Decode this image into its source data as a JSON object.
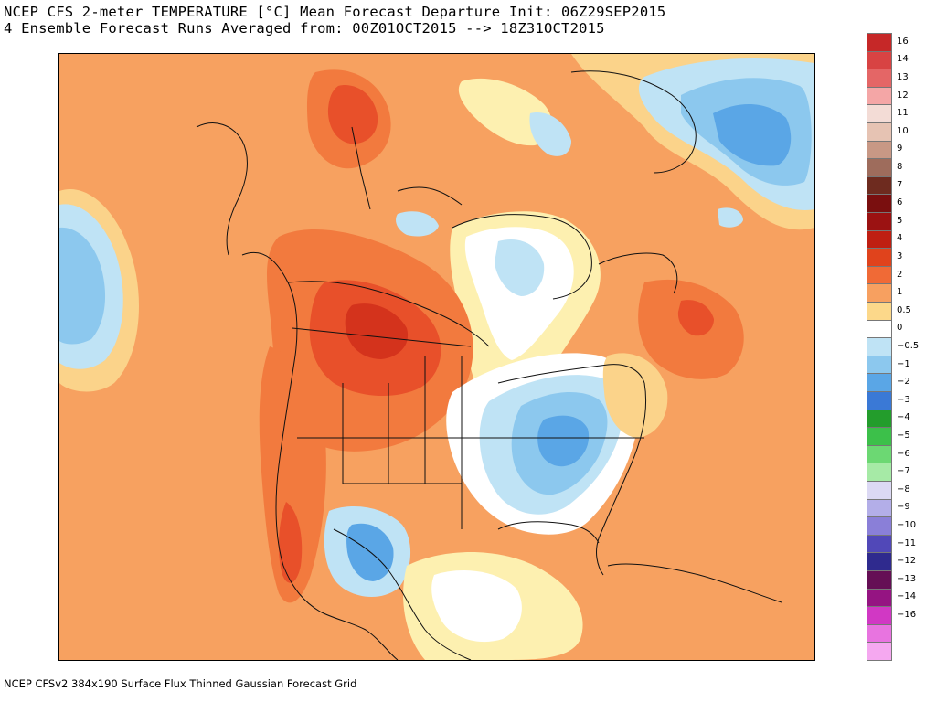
{
  "header": {
    "title_line1": "NCEP CFS 2-meter TEMPERATURE [°C] Mean Forecast Departure Init: 06Z29SEP2015",
    "title_line2": "4 Ensemble Forecast Runs Averaged from: 00Z01OCT2015 --> 18Z31OCT2015"
  },
  "footer": {
    "text": "NCEP CFSv2 384x190 Surface Flux Thinned Gaussian Forecast Grid"
  },
  "map": {
    "region": "North America",
    "colors": {
      "warm_1": "#f7a160",
      "warm_2": "#f27a3e",
      "warm_3": "#e8502a",
      "warm_4": "#d4331c",
      "light_warm": "#fbd38a",
      "pale_yellow": "#fdf0b0",
      "neutral": "#ffffff",
      "light_blue": "#bfe3f5",
      "mid_blue": "#8cc8ee",
      "blue": "#5aa6e6",
      "deep_blue": "#3f7fdc"
    }
  },
  "legend": {
    "items": [
      {
        "label": "16",
        "color": "#c62828"
      },
      {
        "label": "14",
        "color": "#d84343"
      },
      {
        "label": "13",
        "color": "#e46666"
      },
      {
        "label": "12",
        "color": "#f4a6a6"
      },
      {
        "label": "11",
        "color": "#f3dcd6"
      },
      {
        "label": "10",
        "color": "#e6c3b3"
      },
      {
        "label": "9",
        "color": "#c89885"
      },
      {
        "label": "8",
        "color": "#9e6c5c"
      },
      {
        "label": "7",
        "color": "#6e2b1f"
      },
      {
        "label": "6",
        "color": "#7a0f0f"
      },
      {
        "label": "5",
        "color": "#9b1212"
      },
      {
        "label": "4",
        "color": "#bf1f12"
      },
      {
        "label": "3",
        "color": "#e0431c"
      },
      {
        "label": "2",
        "color": "#f06a36"
      },
      {
        "label": "1",
        "color": "#f7a060"
      },
      {
        "label": "0.5",
        "color": "#fcd88a"
      },
      {
        "label": "0",
        "color": "#ffffff"
      },
      {
        "label": "−0.5",
        "color": "#bfe3f5"
      },
      {
        "label": "−1",
        "color": "#8cc8ee"
      },
      {
        "label": "−2",
        "color": "#5aa6e6"
      },
      {
        "label": "−3",
        "color": "#3a79d6"
      },
      {
        "label": "−4",
        "color": "#239d2c"
      },
      {
        "label": "−5",
        "color": "#3cc04a"
      },
      {
        "label": "−6",
        "color": "#6cd873"
      },
      {
        "label": "−7",
        "color": "#a6eaa6"
      },
      {
        "label": "−8",
        "color": "#dcd9f4"
      },
      {
        "label": "−9",
        "color": "#b3aee8"
      },
      {
        "label": "−10",
        "color": "#8a7fd8"
      },
      {
        "label": "−11",
        "color": "#5148b8"
      },
      {
        "label": "−12",
        "color": "#2f2a8e"
      },
      {
        "label": "−13",
        "color": "#650f55"
      },
      {
        "label": "−14",
        "color": "#951482"
      },
      {
        "label": "−16",
        "color": "#d138c4"
      },
      {
        "label": "",
        "color": "#e874e0"
      },
      {
        "label": "",
        "color": "#f5a8f0"
      }
    ]
  }
}
